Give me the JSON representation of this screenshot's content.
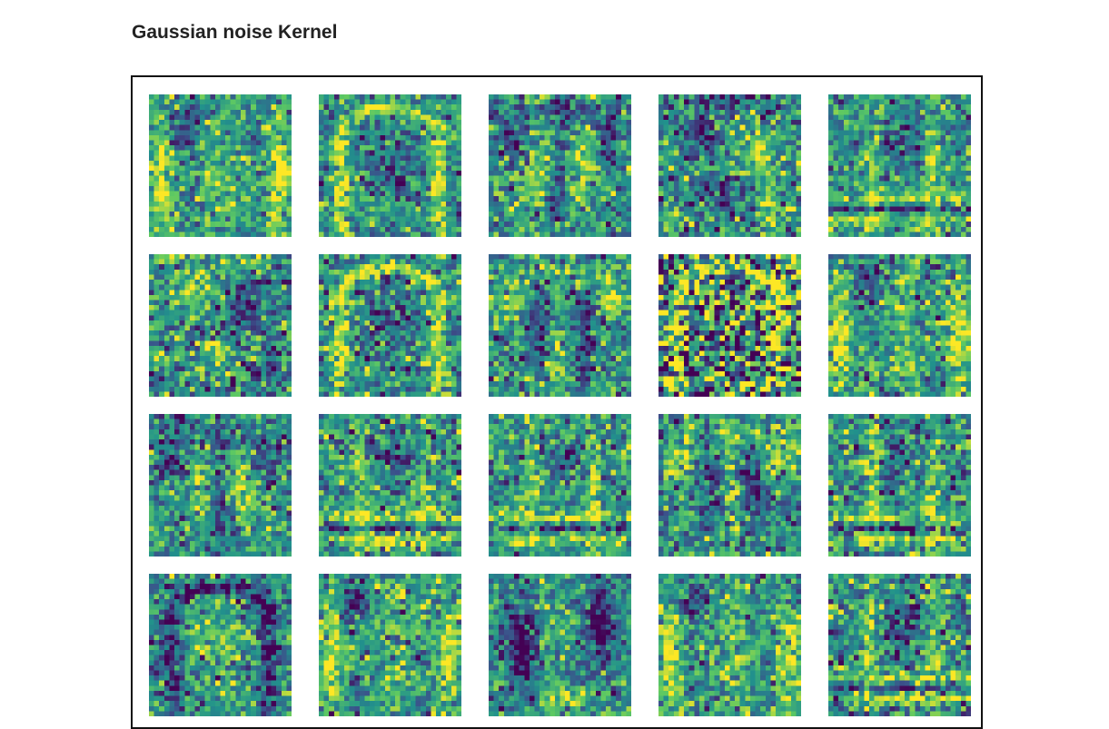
{
  "page": {
    "title": "Gaussian noise Kernel"
  },
  "chart_data": {
    "type": "heatmap",
    "title": "Gaussian noise Kernel",
    "grid": {
      "rows": 4,
      "cols": 5
    },
    "kernel_size": 28,
    "colormap": "viridis",
    "colormap_stops": [
      "#440154",
      "#3b528b",
      "#21918c",
      "#5ec962",
      "#fde725"
    ],
    "axes_visible": false,
    "panels": [
      {
        "row": 0,
        "col": 0,
        "pattern": "sides",
        "noise": 0.18,
        "polarity": 1,
        "seed": 11
      },
      {
        "row": 0,
        "col": 1,
        "pattern": "arch",
        "noise": 0.18,
        "polarity": 1,
        "seed": 12
      },
      {
        "row": 0,
        "col": 2,
        "pattern": "shirt",
        "noise": 0.2,
        "polarity": -1,
        "seed": 13
      },
      {
        "row": 0,
        "col": 3,
        "pattern": "blobs",
        "noise": 0.22,
        "polarity": -1,
        "seed": 14
      },
      {
        "row": 0,
        "col": 4,
        "pattern": "bars",
        "noise": 0.18,
        "polarity": 1,
        "seed": 15
      },
      {
        "row": 1,
        "col": 0,
        "pattern": "blobs",
        "noise": 0.22,
        "polarity": 1,
        "seed": 21
      },
      {
        "row": 1,
        "col": 1,
        "pattern": "arch",
        "noise": 0.2,
        "polarity": 1,
        "seed": 22
      },
      {
        "row": 1,
        "col": 2,
        "pattern": "shirt",
        "noise": 0.2,
        "polarity": 1,
        "seed": 23
      },
      {
        "row": 1,
        "col": 3,
        "pattern": "arch",
        "noise": 0.45,
        "polarity": 1,
        "seed": 24
      },
      {
        "row": 1,
        "col": 4,
        "pattern": "sides",
        "noise": 0.2,
        "polarity": 1,
        "seed": 25
      },
      {
        "row": 2,
        "col": 0,
        "pattern": "shirt",
        "noise": 0.2,
        "polarity": -1,
        "seed": 31
      },
      {
        "row": 2,
        "col": 1,
        "pattern": "bars",
        "noise": 0.2,
        "polarity": 1,
        "seed": 32
      },
      {
        "row": 2,
        "col": 2,
        "pattern": "bars",
        "noise": 0.2,
        "polarity": 1,
        "seed": 33
      },
      {
        "row": 2,
        "col": 3,
        "pattern": "shirt",
        "noise": 0.2,
        "polarity": 1,
        "seed": 34
      },
      {
        "row": 2,
        "col": 4,
        "pattern": "bars",
        "noise": 0.2,
        "polarity": 1,
        "seed": 35
      },
      {
        "row": 3,
        "col": 0,
        "pattern": "arch",
        "noise": 0.2,
        "polarity": -1,
        "seed": 41
      },
      {
        "row": 3,
        "col": 1,
        "pattern": "sides",
        "noise": 0.2,
        "polarity": 1,
        "seed": 42
      },
      {
        "row": 3,
        "col": 2,
        "pattern": "dark-sides",
        "noise": 0.18,
        "polarity": 1,
        "seed": 43
      },
      {
        "row": 3,
        "col": 3,
        "pattern": "sides",
        "noise": 0.2,
        "polarity": 1,
        "seed": 44
      },
      {
        "row": 3,
        "col": 4,
        "pattern": "bars",
        "noise": 0.22,
        "polarity": 1,
        "seed": 45
      }
    ]
  }
}
